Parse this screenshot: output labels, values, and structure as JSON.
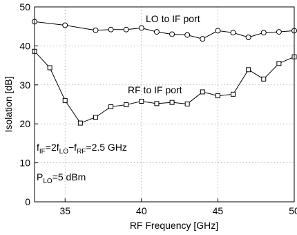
{
  "chart_data": {
    "type": "line",
    "xlabel": "RF Frequency [GHz]",
    "ylabel": "Isolation [dB]",
    "xlim": [
      33,
      50
    ],
    "ylim": [
      0,
      50
    ],
    "xticks": [
      35,
      40,
      45,
      50
    ],
    "yticks": [
      0,
      10,
      20,
      30,
      40,
      50
    ],
    "grid": true,
    "series": [
      {
        "name": "LO to IF port",
        "marker": "circle",
        "x": [
          33,
          35,
          37,
          38,
          39,
          40,
          41,
          42,
          43,
          44,
          45,
          46,
          47,
          48,
          49,
          50
        ],
        "y": [
          46.2,
          45.3,
          44.0,
          44.2,
          44.2,
          44.6,
          43.6,
          43.0,
          42.8,
          41.8,
          43.9,
          43.4,
          42.2,
          43.4,
          43.6,
          43.9
        ]
      },
      {
        "name": "RF to IF port",
        "marker": "square",
        "x": [
          33,
          34,
          35,
          36,
          37,
          38,
          39,
          40,
          41,
          42,
          43,
          44,
          45,
          46,
          47,
          48,
          49,
          50
        ],
        "y": [
          38.6,
          34.4,
          26.0,
          20.2,
          21.7,
          24.4,
          24.9,
          25.8,
          25.2,
          25.5,
          25.1,
          28.2,
          27.2,
          27.6,
          33.9,
          31.5,
          35.5,
          37.2
        ]
      }
    ],
    "annotations": {
      "lo_to_if": "LO to IF port",
      "rf_to_if": "RF to IF port",
      "fif_f": "f",
      "fif_sub_if": "IF",
      "fif_eq_2f": "=2f",
      "fif_sub_lo": "LO",
      "fif_minus_f": "−f",
      "fif_sub_rf": "RF",
      "fif_value": "=2.5 GHz",
      "plo_p": "P",
      "plo_sub_lo": "LO",
      "plo_value": "=5 dBm"
    }
  }
}
